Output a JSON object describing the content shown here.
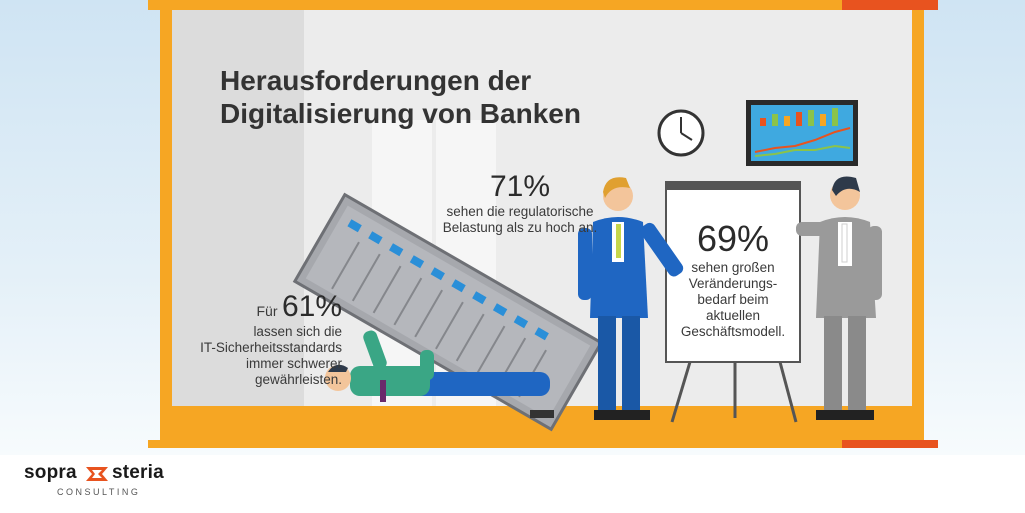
{
  "title_line1": "Herausforderungen der",
  "title_line2": "Digitalisierung von Banken",
  "stats": {
    "s71": {
      "value": "71%",
      "text": [
        "sehen die regulatorische",
        "Belastung als zu hoch an."
      ]
    },
    "s61": {
      "prefix": "Für",
      "value": "61%",
      "text": [
        "lassen sich die",
        "IT-Sicherheitsstandards",
        "immer schwerer",
        "gewährleisten."
      ]
    },
    "s69": {
      "value": "69%",
      "text": [
        "sehen großen",
        "Veränderungs-",
        "bedarf beim",
        "aktuellen",
        "Geschäftsmodell."
      ]
    }
  },
  "logo": {
    "left": "sopra",
    "right": "steria",
    "sub": "CONSULTING"
  },
  "colors": {
    "accent": "#f6a623",
    "accent_red": "#e8531f",
    "suit_blue": "#1f66c2",
    "suit_grey": "#9a9a9a",
    "server": "#a6a8ad"
  },
  "icons": [
    "wall-clock-icon",
    "monitor-chart-icon",
    "server-rack-icon",
    "flipchart-icon"
  ]
}
